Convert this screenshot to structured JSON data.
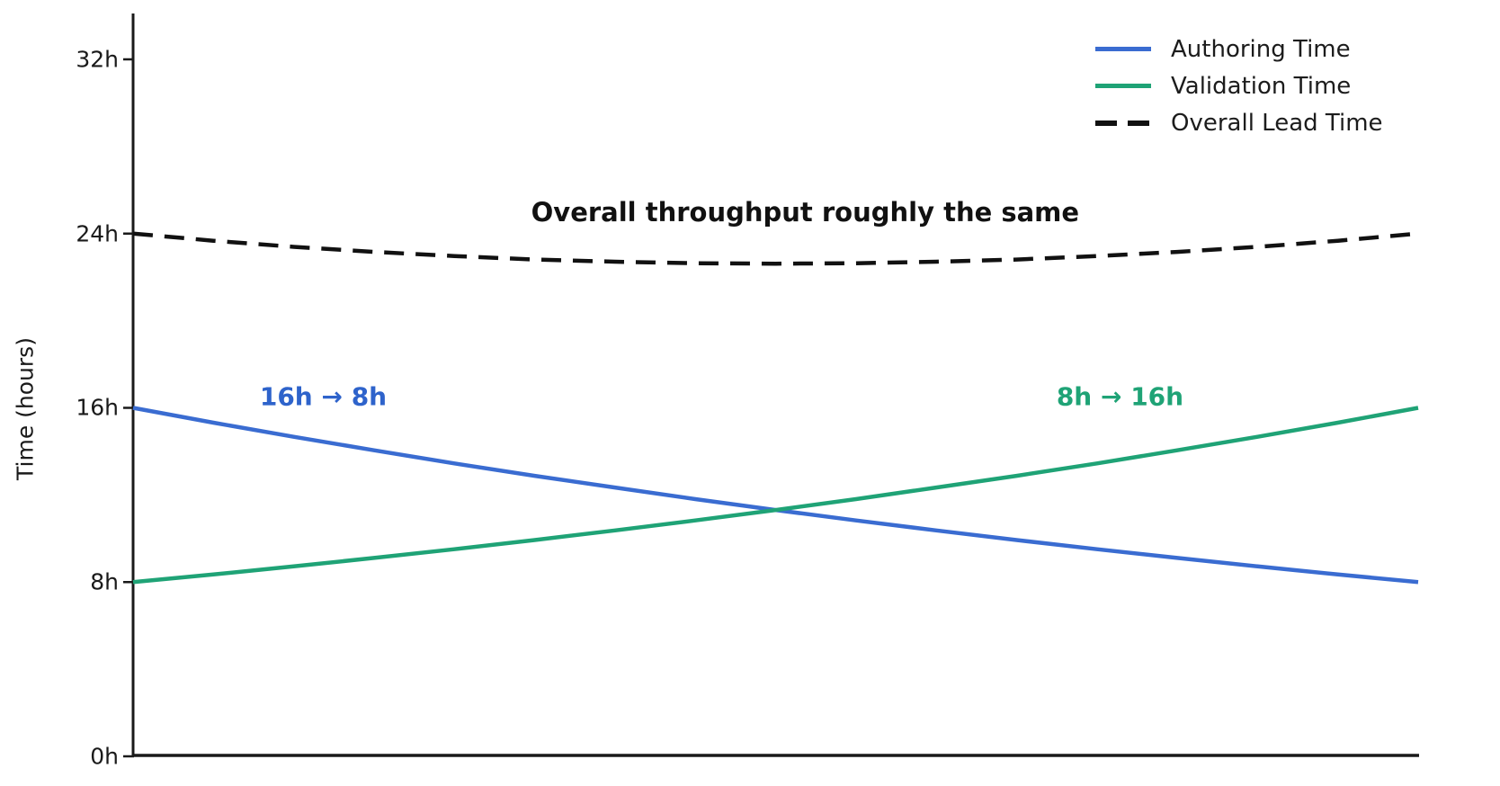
{
  "chart_data": {
    "type": "line",
    "title": "",
    "ylabel": "Time (hours)",
    "xlabel": "",
    "grid": false,
    "legend_position": "top-right",
    "x_range": [
      0,
      1
    ],
    "ylim_hours": [
      0,
      32
    ],
    "yticks": [
      {
        "hours": 0,
        "label": "0h"
      },
      {
        "hours": 8,
        "label": "8h"
      },
      {
        "hours": 16,
        "label": "16h"
      },
      {
        "hours": 24,
        "label": "24h"
      },
      {
        "hours": 32,
        "label": "32h"
      }
    ],
    "x": [
      0,
      0.0625,
      0.125,
      0.1875,
      0.25,
      0.3125,
      0.375,
      0.4375,
      0.5,
      0.5625,
      0.625,
      0.6875,
      0.75,
      0.8125,
      0.875,
      0.9375,
      1
    ],
    "series": [
      {
        "name": "Authoring Time",
        "color": "#3a6cd1",
        "style": "solid",
        "values": [
          16,
          15.32,
          14.67,
          14.05,
          13.45,
          12.88,
          12.34,
          11.81,
          11.31,
          10.83,
          10.37,
          9.93,
          9.51,
          9.11,
          8.72,
          8.35,
          8
        ]
      },
      {
        "name": "Validation Time",
        "color": "#1fa376",
        "style": "solid",
        "values": [
          8,
          8.35,
          8.72,
          9.11,
          9.51,
          9.93,
          10.37,
          10.83,
          11.31,
          11.81,
          12.34,
          12.88,
          13.45,
          14.05,
          14.67,
          15.32,
          16
        ]
      },
      {
        "name": "Overall Lead Time",
        "color": "#111111",
        "style": "dashed",
        "values": [
          24,
          23.67,
          23.39,
          23.16,
          22.97,
          22.81,
          22.71,
          22.64,
          22.62,
          22.64,
          22.71,
          22.81,
          22.97,
          23.16,
          23.39,
          23.67,
          24
        ]
      }
    ],
    "annotations": [
      {
        "text": "16h → 8h",
        "color": "#2e63cb",
        "x": 0.148,
        "hours": 16.5,
        "kind": "small"
      },
      {
        "text": "8h → 16h",
        "color": "#1fa376",
        "x": 0.768,
        "hours": 16.5,
        "kind": "small"
      },
      {
        "text": "Overall throughput roughly the same",
        "color": "#111111",
        "x": 0.523,
        "hours": 25.0,
        "kind": "title"
      }
    ]
  }
}
